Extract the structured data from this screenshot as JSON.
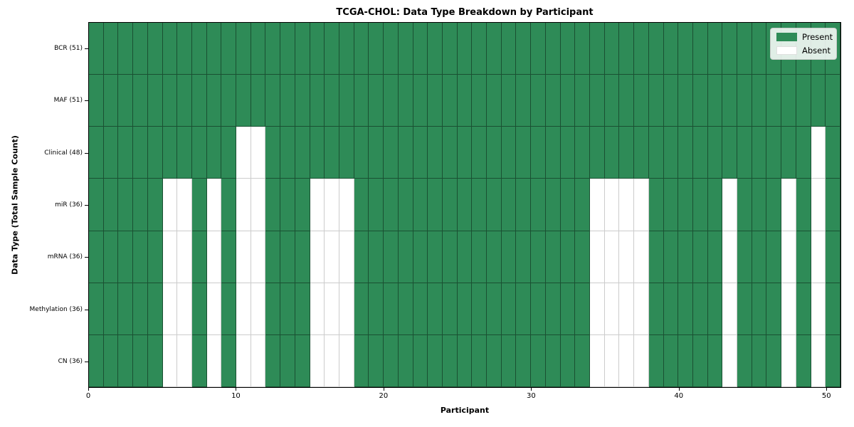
{
  "chart_data": {
    "type": "heatmap",
    "title": "TCGA-CHOL: Data Type Breakdown by Participant",
    "xlabel": "Participant",
    "ylabel": "Data Type (Total Sample Count)",
    "n_participants": 51,
    "x_ticks": [
      0,
      10,
      20,
      30,
      40,
      50
    ],
    "x_range": [
      0,
      51
    ],
    "grid": true,
    "legend_position": "upper right",
    "legend": [
      {
        "label": "Present",
        "color": "#2e8b57"
      },
      {
        "label": "Absent",
        "color": "#ffffff"
      }
    ],
    "colors": {
      "present": "#2e8b57",
      "absent": "#ffffff"
    },
    "rows": [
      {
        "label": "BCR (51)",
        "data_type": "BCR",
        "present_count": 51,
        "absent_participants": []
      },
      {
        "label": "MAF (51)",
        "data_type": "MAF",
        "present_count": 51,
        "absent_participants": []
      },
      {
        "label": "Clinical (48)",
        "data_type": "Clinical",
        "present_count": 48,
        "absent_participants": [
          10,
          11,
          49
        ]
      },
      {
        "label": "miR (36)",
        "data_type": "miR",
        "present_count": 36,
        "absent_participants": [
          5,
          6,
          8,
          10,
          11,
          15,
          16,
          17,
          34,
          35,
          36,
          37,
          43,
          47,
          49
        ]
      },
      {
        "label": "mRNA (36)",
        "data_type": "mRNA",
        "present_count": 36,
        "absent_participants": [
          5,
          6,
          8,
          10,
          11,
          15,
          16,
          17,
          34,
          35,
          36,
          37,
          43,
          47,
          49
        ]
      },
      {
        "label": "Methylation (36)",
        "data_type": "Methylation",
        "present_count": 36,
        "absent_participants": [
          5,
          6,
          8,
          10,
          11,
          15,
          16,
          17,
          34,
          35,
          36,
          37,
          43,
          47,
          49
        ]
      },
      {
        "label": "CN (36)",
        "data_type": "CN",
        "present_count": 36,
        "absent_participants": [
          5,
          6,
          8,
          10,
          11,
          15,
          16,
          17,
          34,
          35,
          36,
          37,
          43,
          47,
          49
        ]
      }
    ]
  }
}
